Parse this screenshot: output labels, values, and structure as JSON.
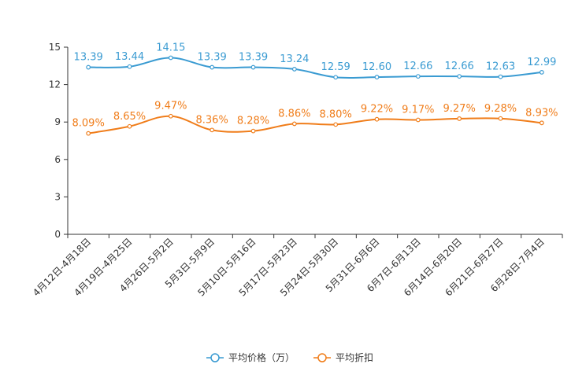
{
  "chart_data": {
    "type": "line",
    "categories": [
      "4月12日-4月18日",
      "4月19日-4月25日",
      "4月26日-5月2日",
      "5月3日-5月9日",
      "5月10日-5月16日",
      "5月17日-5月23日",
      "5月24日-5月30日",
      "5月31日-6月6日",
      "6月7日-6月13日",
      "6月14日-6月20日",
      "6月21日-6月27日",
      "6月28日-7月4日"
    ],
    "series": [
      {
        "name": "平均价格（万）",
        "color": "#3a9bd2",
        "values": [
          13.39,
          13.44,
          14.15,
          13.39,
          13.39,
          13.24,
          12.59,
          12.6,
          12.66,
          12.66,
          12.63,
          12.99
        ],
        "labels": [
          "13.39",
          "13.44",
          "14.15",
          "13.39",
          "13.39",
          "13.24",
          "12.59",
          "12.60",
          "12.66",
          "12.66",
          "12.63",
          "12.99"
        ]
      },
      {
        "name": "平均折扣",
        "color": "#f07d1a",
        "values": [
          8.09,
          8.65,
          9.47,
          8.36,
          8.28,
          8.86,
          8.8,
          9.22,
          9.17,
          9.27,
          9.28,
          8.93
        ],
        "labels": [
          "8.09%",
          "8.65%",
          "9.47%",
          "8.36%",
          "8.28%",
          "8.86%",
          "8.80%",
          "9.22%",
          "9.17%",
          "9.27%",
          "9.28%",
          "8.93%"
        ]
      }
    ],
    "yticks": [
      "0",
      "3",
      "6",
      "9",
      "12",
      "15"
    ],
    "ylim": [
      0,
      15
    ],
    "legend_position": "bottom-center",
    "title": "",
    "xlabel": "",
    "ylabel": ""
  }
}
